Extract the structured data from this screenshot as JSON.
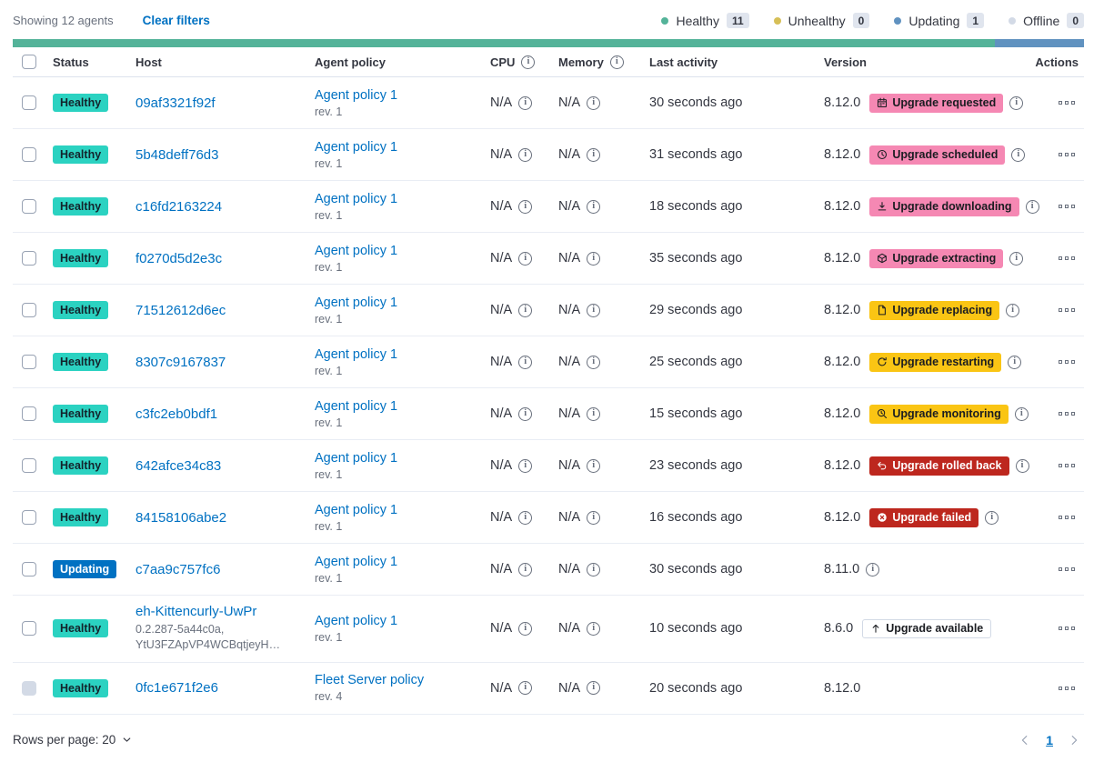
{
  "toolbar": {
    "showing": "Showing 12 agents",
    "clear_filters": "Clear filters",
    "legend": [
      {
        "label": "Healthy",
        "count": "11",
        "color": "#54b399"
      },
      {
        "label": "Unhealthy",
        "count": "0",
        "color": "#d6bf57"
      },
      {
        "label": "Updating",
        "count": "1",
        "color": "#6092c0"
      },
      {
        "label": "Offline",
        "count": "0",
        "color": "#d3dae6"
      }
    ]
  },
  "health_bar": {
    "segments": [
      {
        "status": "healthy",
        "color": "#54b399",
        "percent": 91.7
      },
      {
        "status": "updating",
        "color": "#6092c0",
        "percent": 8.3
      }
    ]
  },
  "table": {
    "headers": {
      "status": "Status",
      "host": "Host",
      "policy": "Agent policy",
      "cpu": "CPU",
      "memory": "Memory",
      "last_activity": "Last activity",
      "version": "Version",
      "actions": "Actions"
    },
    "rows": [
      {
        "status": "Healthy",
        "status_style": "healthy",
        "host": "09af3321f92f",
        "host_meta_lines": [],
        "policy": "Agent policy 1",
        "policy_rev": "rev. 1",
        "policy_lock": false,
        "cpu": "N/A",
        "memory": "N/A",
        "last_activity": "30 seconds ago",
        "version": "8.12.0",
        "version_info": true,
        "checkbox_disabled": false,
        "upgrade": {
          "label": "Upgrade requested",
          "style": "pink",
          "icon": "calendar-icon"
        }
      },
      {
        "status": "Healthy",
        "status_style": "healthy",
        "host": "5b48deff76d3",
        "host_meta_lines": [],
        "policy": "Agent policy 1",
        "policy_rev": "rev. 1",
        "policy_lock": false,
        "cpu": "N/A",
        "memory": "N/A",
        "last_activity": "31 seconds ago",
        "version": "8.12.0",
        "version_info": true,
        "checkbox_disabled": false,
        "upgrade": {
          "label": "Upgrade scheduled",
          "style": "pink",
          "icon": "clock-icon"
        }
      },
      {
        "status": "Healthy",
        "status_style": "healthy",
        "host": "c16fd2163224",
        "host_meta_lines": [],
        "policy": "Agent policy 1",
        "policy_rev": "rev. 1",
        "policy_lock": false,
        "cpu": "N/A",
        "memory": "N/A",
        "last_activity": "18 seconds ago",
        "version": "8.12.0",
        "version_info": true,
        "checkbox_disabled": false,
        "upgrade": {
          "label": "Upgrade downloading",
          "style": "pink",
          "icon": "download-icon"
        }
      },
      {
        "status": "Healthy",
        "status_style": "healthy",
        "host": "f0270d5d2e3c",
        "host_meta_lines": [],
        "policy": "Agent policy 1",
        "policy_rev": "rev. 1",
        "policy_lock": false,
        "cpu": "N/A",
        "memory": "N/A",
        "last_activity": "35 seconds ago",
        "version": "8.12.0",
        "version_info": true,
        "checkbox_disabled": false,
        "upgrade": {
          "label": "Upgrade extracting",
          "style": "pink",
          "icon": "package-icon"
        }
      },
      {
        "status": "Healthy",
        "status_style": "healthy",
        "host": "71512612d6ec",
        "host_meta_lines": [],
        "policy": "Agent policy 1",
        "policy_rev": "rev. 1",
        "policy_lock": false,
        "cpu": "N/A",
        "memory": "N/A",
        "last_activity": "29 seconds ago",
        "version": "8.12.0",
        "version_info": true,
        "checkbox_disabled": false,
        "upgrade": {
          "label": "Upgrade replacing",
          "style": "yellow",
          "icon": "document-icon"
        }
      },
      {
        "status": "Healthy",
        "status_style": "healthy",
        "host": "8307c9167837",
        "host_meta_lines": [],
        "policy": "Agent policy 1",
        "policy_rev": "rev. 1",
        "policy_lock": false,
        "cpu": "N/A",
        "memory": "N/A",
        "last_activity": "25 seconds ago",
        "version": "8.12.0",
        "version_info": true,
        "checkbox_disabled": false,
        "upgrade": {
          "label": "Upgrade restarting",
          "style": "yellow",
          "icon": "refresh-icon"
        }
      },
      {
        "status": "Healthy",
        "status_style": "healthy",
        "host": "c3fc2eb0bdf1",
        "host_meta_lines": [],
        "policy": "Agent policy 1",
        "policy_rev": "rev. 1",
        "policy_lock": false,
        "cpu": "N/A",
        "memory": "N/A",
        "last_activity": "15 seconds ago",
        "version": "8.12.0",
        "version_info": true,
        "checkbox_disabled": false,
        "upgrade": {
          "label": "Upgrade monitoring",
          "style": "yellow",
          "icon": "inspect-icon"
        }
      },
      {
        "status": "Healthy",
        "status_style": "healthy",
        "host": "642afce34c83",
        "host_meta_lines": [],
        "policy": "Agent policy 1",
        "policy_rev": "rev. 1",
        "policy_lock": false,
        "cpu": "N/A",
        "memory": "N/A",
        "last_activity": "23 seconds ago",
        "version": "8.12.0",
        "version_info": true,
        "checkbox_disabled": false,
        "upgrade": {
          "label": "Upgrade rolled back",
          "style": "red",
          "icon": "return-arrow-icon"
        }
      },
      {
        "status": "Healthy",
        "status_style": "healthy",
        "host": "84158106abe2",
        "host_meta_lines": [],
        "policy": "Agent policy 1",
        "policy_rev": "rev. 1",
        "policy_lock": false,
        "cpu": "N/A",
        "memory": "N/A",
        "last_activity": "16 seconds ago",
        "version": "8.12.0",
        "version_info": true,
        "checkbox_disabled": false,
        "upgrade": {
          "label": "Upgrade failed",
          "style": "red",
          "icon": "cross-circle-icon"
        }
      },
      {
        "status": "Updating",
        "status_style": "updating",
        "host": "c7aa9c757fc6",
        "host_meta_lines": [],
        "policy": "Agent policy 1",
        "policy_rev": "rev. 1",
        "policy_lock": false,
        "cpu": "N/A",
        "memory": "N/A",
        "last_activity": "30 seconds ago",
        "version": "8.11.0",
        "version_info": true,
        "checkbox_disabled": false,
        "upgrade": null
      },
      {
        "status": "Healthy",
        "status_style": "healthy",
        "host": "eh-Kittencurly-UwPr",
        "host_meta_lines": [
          "0.2.287-5a44c0a,",
          "YtU3FZApVP4WCBqtjeyH…"
        ],
        "policy": "Agent policy 1",
        "policy_rev": "rev. 1",
        "policy_lock": false,
        "cpu": "N/A",
        "memory": "N/A",
        "last_activity": "10 seconds ago",
        "version": "8.6.0",
        "version_info": false,
        "checkbox_disabled": false,
        "upgrade": {
          "label": "Upgrade available",
          "style": "hollow",
          "icon": "arrow-up-icon"
        }
      },
      {
        "status": "Healthy",
        "status_style": "healthy",
        "host": "0fc1e671f2e6",
        "host_meta_lines": [],
        "policy": "Fleet Server policy",
        "policy_rev": "rev. 4",
        "policy_lock": true,
        "cpu": "N/A",
        "memory": "N/A",
        "last_activity": "20 seconds ago",
        "version": "8.12.0",
        "version_info": false,
        "checkbox_disabled": true,
        "upgrade": null
      }
    ]
  },
  "footer": {
    "rows_per_page": "Rows per page: 20",
    "page": "1"
  }
}
